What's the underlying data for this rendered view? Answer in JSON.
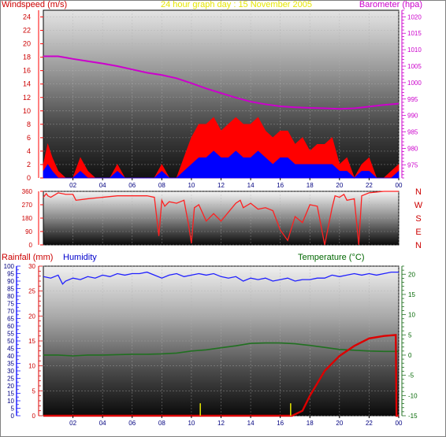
{
  "title": "24 hour graph day : 15 November 2005",
  "colors": {
    "wind": "#ff0000",
    "gust_fill": "#ff0000",
    "avg_fill": "#0000ff",
    "barometer": "#cc00cc",
    "direction": "#ff2020",
    "rain": "#dd0000",
    "humidity": "#2020ff",
    "temperature": "#207020",
    "sun": "#e8e800",
    "title": "#e6e600",
    "rain_label": "#cc0000",
    "hum_label": "#0000cc",
    "temp_label": "#006600",
    "grid": "#b0b0b0"
  },
  "x_tick_labels": [
    "02",
    "04",
    "06",
    "08",
    "10",
    "12",
    "14",
    "16",
    "18",
    "20",
    "22",
    "00"
  ],
  "chart_data": [
    {
      "type": "area",
      "panel": "wind-baro",
      "title": "24 hour graph day : 15 November 2005",
      "ylabel_left": "Windspeed (m/s)",
      "ylabel_right": "Barometer (hpa)",
      "y_left_ticks": [
        0,
        2,
        4,
        6,
        8,
        10,
        12,
        14,
        16,
        18,
        20,
        22,
        24
      ],
      "ylim_left": [
        0,
        25
      ],
      "y_right_ticks": [
        975,
        980,
        985,
        990,
        995,
        1000,
        1005,
        1010,
        1015,
        1020
      ],
      "ylim_right": [
        971,
        1022
      ],
      "grid": true,
      "series": [
        {
          "name": "Barometer (hpa)",
          "x": [
            0,
            0.5,
            1,
            1.5,
            2,
            3,
            4,
            5,
            6,
            7,
            8,
            9,
            10,
            11,
            12,
            13,
            14,
            15,
            16,
            17,
            18,
            19,
            20,
            21,
            22,
            23,
            24
          ],
          "values": [
            1008,
            1008,
            1008,
            1007.6,
            1007.2,
            1006.5,
            1005.8,
            1005,
            1004,
            1003,
            1002.3,
            1001.3,
            999.8,
            998.2,
            996.8,
            995.4,
            994.2,
            993.4,
            992.8,
            992.5,
            992.3,
            992.2,
            992,
            992.2,
            992.7,
            993.2,
            993.6
          ]
        },
        {
          "name": "Wind gust (m/s)",
          "x": [
            0,
            0.3,
            0.6,
            1,
            1.5,
            2,
            2.5,
            3,
            3.5,
            4,
            4.5,
            5,
            5.5,
            6,
            6.5,
            7,
            7.5,
            8,
            8.5,
            9,
            9.5,
            10,
            10.5,
            11,
            11.5,
            12,
            12.5,
            13,
            13.5,
            14,
            14.5,
            15,
            15.5,
            16,
            16.5,
            17,
            17.5,
            18,
            18.5,
            19,
            19.5,
            20,
            20.5,
            21,
            21.5,
            22,
            22.5,
            23,
            23.5,
            24
          ],
          "values": [
            2,
            5,
            3,
            1,
            0,
            0,
            3,
            1,
            0,
            0,
            0,
            2,
            0,
            0,
            0,
            0,
            0,
            2,
            0,
            0,
            3,
            6,
            8,
            8,
            9,
            7,
            8,
            9,
            8,
            8,
            9,
            7,
            6,
            7,
            7,
            5,
            6,
            4,
            5,
            5,
            6,
            2,
            3,
            0,
            2,
            3,
            0,
            0,
            1,
            2
          ]
        },
        {
          "name": "Average wind (m/s)",
          "x": [
            0,
            0.3,
            0.6,
            1,
            1.5,
            2,
            2.5,
            3,
            3.5,
            4,
            4.5,
            5,
            5.5,
            6,
            6.5,
            7,
            7.5,
            8,
            8.5,
            9,
            9.5,
            10,
            10.5,
            11,
            11.5,
            12,
            12.5,
            13,
            13.5,
            14,
            14.5,
            15,
            15.5,
            16,
            16.5,
            17,
            17.5,
            18,
            18.5,
            19,
            19.5,
            20,
            20.5,
            21,
            21.5,
            22,
            22.5,
            23,
            23.5,
            24
          ],
          "values": [
            1,
            2,
            1,
            0,
            0,
            0,
            1,
            0,
            0,
            0,
            0,
            1,
            0,
            0,
            0,
            0,
            0,
            1,
            0,
            0,
            1,
            2,
            3,
            3,
            4,
            3,
            3,
            4,
            3,
            3,
            4,
            3,
            2,
            3,
            3,
            2,
            2,
            2,
            2,
            2,
            2,
            1,
            1,
            0,
            1,
            1,
            0,
            0,
            0,
            1
          ]
        }
      ]
    },
    {
      "type": "line",
      "panel": "wind-direction",
      "y_left_ticks": [
        0,
        90,
        180,
        270,
        360
      ],
      "ylim": [
        0,
        360
      ],
      "direction_labels": [
        "N",
        "W",
        "S",
        "E",
        "N"
      ],
      "grid": true,
      "series": [
        {
          "name": "Wind direction",
          "x": [
            0,
            0.2,
            0.3,
            0.5,
            1,
            1.5,
            2,
            2.2,
            3,
            4,
            5,
            6,
            7,
            7.5,
            7.8,
            8,
            8.2,
            8.5,
            9,
            9.5,
            9.8,
            10,
            10.2,
            10.5,
            11,
            11.5,
            12,
            12.5,
            13,
            13.3,
            13.5,
            14,
            14.5,
            15,
            15.5,
            16,
            16.5,
            17,
            17.5,
            18,
            18.5,
            19,
            19.5,
            19.7,
            20,
            20.3,
            20.5,
            21,
            21.3,
            21.5,
            22,
            23,
            24
          ],
          "values": [
            320,
            345,
            330,
            320,
            350,
            340,
            340,
            300,
            310,
            320,
            330,
            330,
            330,
            320,
            60,
            300,
            260,
            290,
            280,
            300,
            140,
            10,
            250,
            270,
            160,
            210,
            160,
            220,
            280,
            300,
            250,
            280,
            240,
            250,
            230,
            100,
            30,
            190,
            150,
            270,
            260,
            0,
            250,
            330,
            320,
            340,
            300,
            310,
            0,
            330,
            350,
            360,
            360
          ]
        }
      ]
    },
    {
      "type": "line",
      "panel": "rain-hum-temp",
      "ylabel_rain": "Rainfall (mm)",
      "ylabel_humidity": "Humidity",
      "ylabel_temperature": "Temperature (°C)",
      "y_rain_ticks": [
        0,
        5,
        10,
        15,
        20,
        25,
        30
      ],
      "ylim_rain": [
        0,
        30
      ],
      "y_humidity_ticks": [
        0,
        5,
        10,
        15,
        20,
        25,
        30,
        35,
        40,
        45,
        50,
        55,
        60,
        65,
        70,
        75,
        80,
        85,
        90,
        95,
        100
      ],
      "ylim_humidity": [
        0,
        100
      ],
      "y_temperature_ticks": [
        -15,
        -10,
        -5,
        0,
        5,
        10,
        15,
        20
      ],
      "ylim_temperature": [
        -15,
        22
      ],
      "grid": true,
      "series": [
        {
          "name": "Humidity",
          "x": [
            0,
            0.5,
            1,
            1.3,
            1.5,
            2,
            2.5,
            3,
            3.5,
            4,
            4.5,
            5,
            5.5,
            6,
            6.5,
            7,
            7.5,
            8,
            8.5,
            9,
            9.5,
            10,
            10.5,
            11,
            11.5,
            12,
            12.5,
            13,
            13.5,
            14,
            14.5,
            15,
            15.5,
            16,
            16.5,
            17,
            17.5,
            18,
            18.5,
            19,
            19.5,
            20,
            20.5,
            21,
            21.5,
            22,
            22.5,
            23,
            23.5,
            24
          ],
          "values": [
            93,
            92,
            94,
            88,
            90,
            92,
            91,
            93,
            92,
            94,
            93,
            95,
            94,
            95,
            95,
            96,
            94,
            92,
            94,
            95,
            93,
            94,
            95,
            94,
            95,
            93,
            92,
            93,
            90,
            92,
            91,
            92,
            90,
            91,
            92,
            90,
            91,
            91,
            92,
            92,
            94,
            93,
            94,
            95,
            94,
            95,
            94,
            95,
            96,
            96
          ]
        },
        {
          "name": "Temperature (°C)",
          "x": [
            0,
            1,
            2,
            3,
            4,
            5,
            6,
            7,
            8,
            9,
            10,
            11,
            12,
            13,
            14,
            15,
            16,
            17,
            18,
            19,
            20,
            21,
            22,
            23,
            24
          ],
          "values": [
            0,
            0,
            -0.2,
            0,
            0,
            0.1,
            0.2,
            0.2,
            0.3,
            0.5,
            1.0,
            1.3,
            1.8,
            2.3,
            2.9,
            3.0,
            3.0,
            2.8,
            2.4,
            1.9,
            1.4,
            1.2,
            1.0,
            0.9,
            0.9
          ]
        },
        {
          "name": "Rainfall (mm)",
          "x": [
            0,
            16.8,
            17.5,
            18,
            19,
            20,
            21,
            22,
            23,
            23.8,
            23.85,
            24
          ],
          "values": [
            0,
            0,
            1,
            4,
            9,
            12,
            14,
            15.5,
            16,
            16.2,
            0,
            0
          ]
        },
        {
          "name": "Sunshine",
          "x": [
            10.6,
            16.7
          ],
          "values": [
            2.5,
            2.5
          ]
        }
      ]
    }
  ]
}
